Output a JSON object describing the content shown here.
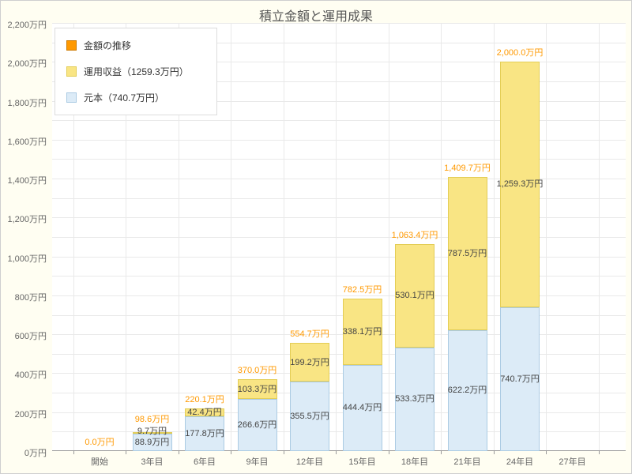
{
  "title": "積立金額と運用成果",
  "colors": {
    "background": "#fffef2",
    "plot_background": "#ffffff",
    "grid": "#e9e9e9",
    "axis_line": "#999999",
    "axis_text": "#666666",
    "total_label": "#ff9900",
    "segment_label": "#444444"
  },
  "legend": {
    "items": [
      {
        "label": "金額の推移",
        "swatch_color": "#ff9900",
        "swatch_border": "#cc7a00"
      },
      {
        "label": "運用収益（1259.3万円）",
        "swatch_color": "#f9e584",
        "swatch_border": "#e3cd55"
      },
      {
        "label": "元本（740.7万円）",
        "swatch_color": "#dcebf7",
        "swatch_border": "#abcbe3"
      }
    ]
  },
  "y_axis": {
    "max": 2200,
    "tick_step": 200,
    "grid_step": 100,
    "unit": "万円",
    "labels": [
      "0万円",
      "200万円",
      "400万円",
      "600万円",
      "800万円",
      "1,000万円",
      "1,200万円",
      "1,400万円",
      "1,600万円",
      "1,800万円",
      "2,000万円",
      "2,200万円"
    ]
  },
  "x_axis": {
    "categories": [
      "開始",
      "3年目",
      "6年目",
      "9年目",
      "12年目",
      "15年目",
      "18年目",
      "21年目",
      "24年目",
      "27年目"
    ]
  },
  "chart_data": {
    "type": "bar",
    "stacked": true,
    "title": "積立金額と運用成果",
    "ylim": [
      0,
      2200
    ],
    "grid": true,
    "legend_position": "top-left",
    "categories": [
      "開始",
      "3年目",
      "6年目",
      "9年目",
      "12年目",
      "15年目",
      "18年目",
      "21年目",
      "24年目",
      "27年目"
    ],
    "series": [
      {
        "name": "元本（740.7万円）",
        "color": "#dcebf7",
        "border_color": "#abcbe3",
        "values": [
          0,
          88.9,
          177.8,
          266.6,
          355.5,
          444.4,
          533.3,
          622.2,
          740.7,
          null
        ],
        "labels": [
          "",
          "88.9万円",
          "177.8万円",
          "266.6万円",
          "355.5万円",
          "444.4万円",
          "533.3万円",
          "622.2万円",
          "740.7万円",
          ""
        ]
      },
      {
        "name": "運用収益（1259.3万円）",
        "color": "#f9e584",
        "border_color": "#e3cd55",
        "values": [
          0,
          9.7,
          42.4,
          103.3,
          199.2,
          338.1,
          530.1,
          787.5,
          1259.3,
          null
        ],
        "labels": [
          "",
          "9.7万円",
          "42.4万円",
          "103.3万円",
          "199.2万円",
          "338.1万円",
          "530.1万円",
          "787.5万円",
          "1,259.3万円",
          ""
        ]
      }
    ],
    "totals": {
      "name": "金額の推移",
      "values": [
        0,
        98.6,
        220.1,
        370.0,
        554.7,
        782.5,
        1063.4,
        1409.7,
        2000.0,
        null
      ],
      "labels": [
        "0.0万円",
        "98.6万円",
        "220.1万円",
        "370.0万円",
        "554.7万円",
        "782.5万円",
        "1,063.4万円",
        "1,409.7万円",
        "2,000.0万円",
        ""
      ]
    }
  }
}
